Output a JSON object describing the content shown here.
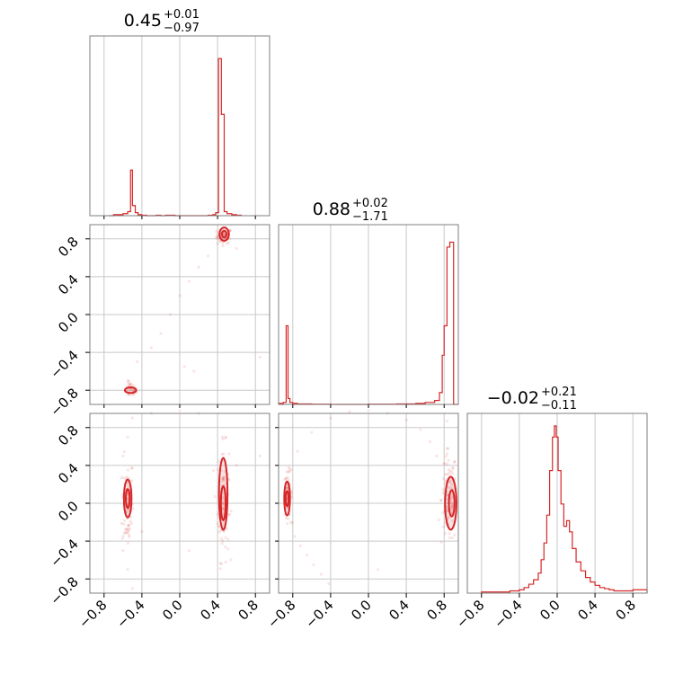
{
  "colors": {
    "series": "#d62728",
    "grid": "#c8c8c8",
    "frame": "#7f7f7f"
  },
  "chart_data": {
    "type": "corner",
    "parameters": [
      {
        "index": 0,
        "title_main": "0.45",
        "title_sup": "+0.01",
        "title_sub": "−0.97",
        "range": [
          -0.95,
          0.95
        ]
      },
      {
        "index": 1,
        "title_main": "0.88",
        "title_sup": "+0.02",
        "title_sub": "−1.71",
        "range": [
          -0.95,
          0.95
        ]
      },
      {
        "index": 2,
        "title_main": "−0.02",
        "title_sup": "+0.21",
        "title_sub": "−0.11",
        "range": [
          -0.95,
          0.95
        ]
      }
    ],
    "ticks": [
      {
        "value": -0.8,
        "label": "−0.8"
      },
      {
        "value": -0.4,
        "label": "−0.4"
      },
      {
        "value": 0.0,
        "label": "0.0"
      },
      {
        "value": 0.4,
        "label": "0.4"
      },
      {
        "value": 0.8,
        "label": "0.8"
      }
    ],
    "histograms": [
      {
        "param": 0,
        "edges": [
          -0.75,
          -0.7,
          -0.65,
          -0.6,
          -0.55,
          -0.52,
          -0.5,
          -0.47,
          -0.44,
          -0.4,
          -0.35,
          -0.25,
          -0.2,
          -0.15,
          -0.05,
          0.05,
          0.3,
          0.35,
          0.38,
          0.41,
          0.44,
          0.47,
          0.5,
          0.55,
          0.6,
          0.65
        ],
        "counts": [
          0,
          1,
          1,
          2,
          4,
          45,
          10,
          3,
          1,
          0.5,
          0,
          0.5,
          0,
          0.5,
          0,
          0,
          0.5,
          1,
          3,
          155,
          100,
          4,
          2,
          1,
          0.5
        ],
        "ymax": 165
      },
      {
        "param": 1,
        "edges": [
          -0.95,
          -0.9,
          -0.87,
          -0.85,
          -0.83,
          -0.8,
          -0.75,
          -0.6,
          -0.4,
          -0.2,
          0.0,
          0.3,
          0.5,
          0.6,
          0.7,
          0.75,
          0.78,
          0.8,
          0.83,
          0.86,
          0.9,
          0.95
        ],
        "counts": [
          1,
          2,
          80,
          6,
          2,
          1,
          0.5,
          0.3,
          0,
          0,
          0.3,
          0.5,
          1,
          2,
          4,
          12,
          50,
          80,
          160,
          165,
          0
        ],
        "ymax": 170
      },
      {
        "param": 2,
        "edges": [
          -0.8,
          -0.7,
          -0.6,
          -0.5,
          -0.4,
          -0.35,
          -0.3,
          -0.25,
          -0.2,
          -0.17,
          -0.14,
          -0.11,
          -0.08,
          -0.05,
          -0.03,
          -0.01,
          0.01,
          0.04,
          0.07,
          0.1,
          0.13,
          0.16,
          0.2,
          0.25,
          0.3,
          0.35,
          0.4,
          0.45,
          0.5,
          0.55,
          0.6,
          0.7,
          0.8,
          0.9,
          0.95
        ],
        "counts": [
          1,
          1,
          1,
          2,
          3,
          5,
          8,
          12,
          18,
          30,
          45,
          70,
          110,
          140,
          150,
          140,
          110,
          80,
          60,
          65,
          55,
          40,
          28,
          20,
          14,
          10,
          7,
          5,
          4,
          3,
          2,
          2,
          3,
          3
        ],
        "ymax": 150
      }
    ],
    "scatter_pairs": [
      {
        "x_param": 0,
        "y_param": 1,
        "clusters": [
          {
            "center": [
              0.47,
              0.83
            ],
            "spread": [
              0.04,
              0.04
            ],
            "n": 60
          },
          {
            "center": [
              -0.52,
              -0.8
            ],
            "spread": [
              0.03,
              0.04
            ],
            "n": 35
          }
        ],
        "arc_points": [
          [
            -0.55,
            -0.7
          ],
          [
            -0.45,
            -0.5
          ],
          [
            -0.3,
            -0.35
          ],
          [
            -0.2,
            -0.2
          ],
          [
            -0.1,
            0.0
          ],
          [
            0.0,
            0.2
          ],
          [
            0.1,
            0.35
          ],
          [
            0.2,
            0.5
          ],
          [
            0.3,
            0.62
          ],
          [
            0.4,
            0.75
          ],
          [
            0.05,
            -0.55
          ],
          [
            0.15,
            -0.6
          ],
          [
            0.85,
            -0.45
          ],
          [
            0.6,
            0.7
          ]
        ],
        "contours": [
          {
            "center": [
              0.47,
              0.85
            ],
            "radius": [
              0.05,
              0.07
            ]
          },
          {
            "center": [
              0.47,
              0.85
            ],
            "radius": [
              0.025,
              0.035
            ]
          },
          {
            "center": [
              -0.52,
              -0.8
            ],
            "radius": [
              0.06,
              0.03
            ]
          }
        ]
      },
      {
        "x_param": 0,
        "y_param": 2,
        "clusters": [
          {
            "center": [
              -0.55,
              0.0
            ],
            "spread": [
              0.03,
              0.25
            ],
            "n": 80
          },
          {
            "center": [
              0.46,
              0.0
            ],
            "spread": [
              0.03,
              0.3
            ],
            "n": 90
          }
        ],
        "arc_points": [
          [
            -0.6,
            0.5
          ],
          [
            -0.55,
            0.7
          ],
          [
            -0.5,
            0.9
          ],
          [
            -0.6,
            -0.5
          ],
          [
            -0.55,
            -0.7
          ],
          [
            -0.5,
            -0.9
          ],
          [
            -0.3,
            0.95
          ],
          [
            0.0,
            0.98
          ],
          [
            0.2,
            0.95
          ],
          [
            0.45,
            0.7
          ],
          [
            0.6,
            0.4
          ],
          [
            0.85,
            0.5
          ],
          [
            -0.4,
            -0.3
          ],
          [
            0.1,
            -0.5
          ]
        ],
        "contours": [
          {
            "center": [
              -0.55,
              0.05
            ],
            "radius": [
              0.04,
              0.2
            ]
          },
          {
            "center": [
              -0.55,
              0.05
            ],
            "radius": [
              0.02,
              0.1
            ]
          },
          {
            "center": [
              0.46,
              0.1
            ],
            "radius": [
              0.045,
              0.38
            ]
          },
          {
            "center": [
              0.46,
              0.0
            ],
            "radius": [
              0.025,
              0.18
            ]
          }
        ]
      },
      {
        "x_param": 1,
        "y_param": 2,
        "clusters": [
          {
            "center": [
              -0.85,
              0.1
            ],
            "spread": [
              0.02,
              0.12
            ],
            "n": 60
          },
          {
            "center": [
              0.85,
              0.05
            ],
            "spread": [
              0.04,
              0.25
            ],
            "n": 100
          }
        ],
        "arc_points": [
          [
            -0.82,
            -0.2
          ],
          [
            -0.78,
            -0.35
          ],
          [
            -0.72,
            -0.45
          ],
          [
            -0.65,
            -0.55
          ],
          [
            -0.58,
            -0.65
          ],
          [
            -0.5,
            -0.75
          ],
          [
            -0.42,
            -0.85
          ],
          [
            -0.82,
            0.35
          ],
          [
            -0.75,
            0.55
          ],
          [
            -0.6,
            0.75
          ],
          [
            -0.4,
            0.9
          ],
          [
            -0.2,
            0.97
          ],
          [
            0.0,
            0.98
          ],
          [
            0.2,
            0.95
          ],
          [
            0.4,
            0.88
          ],
          [
            0.55,
            0.78
          ],
          [
            0.65,
            0.65
          ],
          [
            0.72,
            0.5
          ],
          [
            0.1,
            -0.7
          ]
        ],
        "contours": [
          {
            "center": [
              -0.86,
              0.05
            ],
            "radius": [
              0.03,
              0.18
            ]
          },
          {
            "center": [
              -0.86,
              0.05
            ],
            "radius": [
              0.015,
              0.08
            ]
          },
          {
            "center": [
              0.87,
              0.0
            ],
            "radius": [
              0.06,
              0.28
            ]
          },
          {
            "center": [
              0.88,
              0.0
            ],
            "radius": [
              0.03,
              0.14
            ]
          }
        ]
      }
    ]
  }
}
